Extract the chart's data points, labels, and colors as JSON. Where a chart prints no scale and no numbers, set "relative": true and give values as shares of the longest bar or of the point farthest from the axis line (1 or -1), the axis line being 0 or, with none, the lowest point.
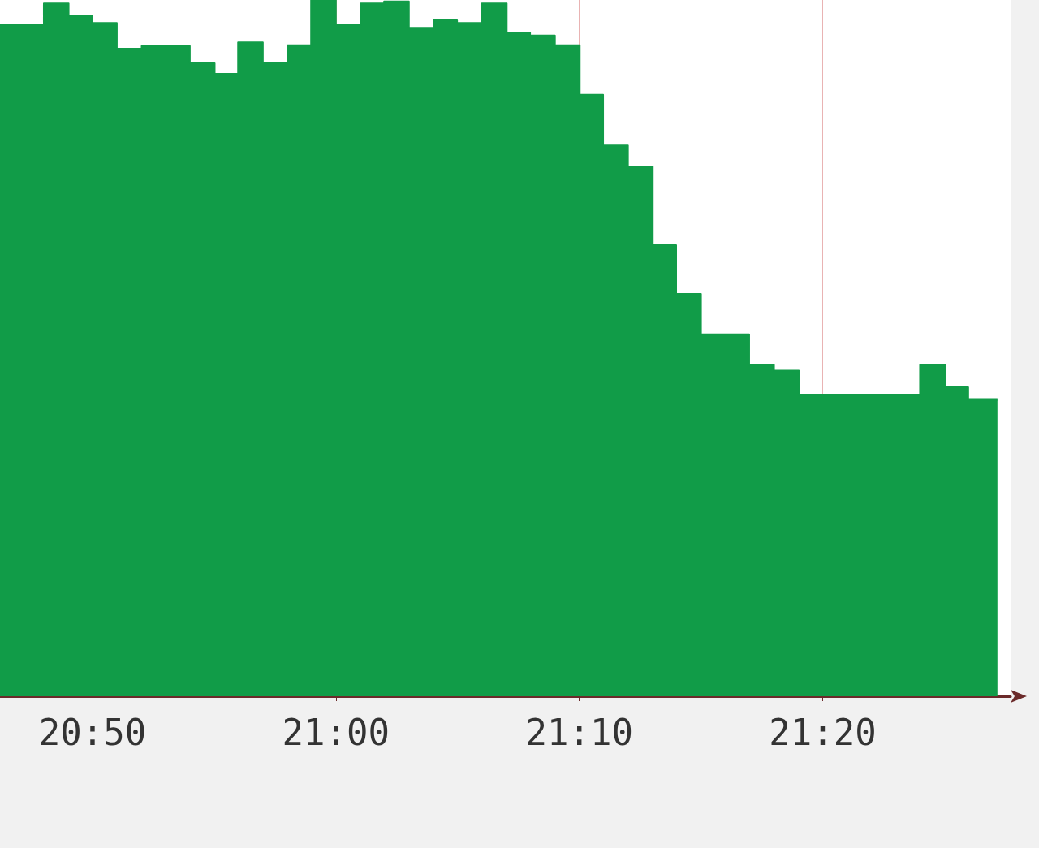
{
  "chart_data": {
    "type": "area",
    "relative": true,
    "color": "#119c48",
    "grid": "x",
    "x": [
      20.77,
      20.8,
      20.8,
      20.817,
      20.817,
      20.833,
      20.833,
      20.85,
      20.85,
      20.867,
      20.867,
      20.9,
      20.9,
      20.917,
      20.917,
      20.933,
      20.933,
      20.95,
      20.95,
      20.967,
      20.967,
      20.983,
      20.983,
      21,
      21,
      21.017,
      21.017,
      21.033,
      21.033,
      21.05,
      21.05,
      21.067,
      21.067,
      21.083,
      21.083,
      21.1,
      21.1,
      21.117,
      21.117,
      21.133,
      21.133,
      21.15,
      21.15,
      21.167,
      21.167,
      21.183,
      21.183,
      21.2,
      21.2,
      21.217,
      21.217,
      21.233,
      21.233,
      21.25,
      21.25,
      21.283,
      21.283,
      21.3,
      21.3,
      21.317,
      21.317,
      21.4,
      21.4,
      21.417,
      21.417,
      21.433,
      21.433,
      21.453
    ],
    "values": [
      0.964,
      0.964,
      0.995,
      0.995,
      0.977,
      0.977,
      0.967,
      0.967,
      0.93,
      0.93,
      0.934,
      0.934,
      0.909,
      0.909,
      0.894,
      0.894,
      0.939,
      0.939,
      0.909,
      0.909,
      0.935,
      0.935,
      1,
      1,
      0.964,
      0.964,
      0.995,
      0.995,
      0.998,
      0.998,
      0.96,
      0.96,
      0.971,
      0.971,
      0.967,
      0.967,
      0.995,
      0.995,
      0.953,
      0.953,
      0.949,
      0.949,
      0.935,
      0.935,
      0.864,
      0.864,
      0.791,
      0.791,
      0.761,
      0.761,
      0.648,
      0.648,
      0.578,
      0.578,
      0.52,
      0.52,
      0.476,
      0.476,
      0.468,
      0.468,
      0.433,
      0.433,
      0.476,
      0.476,
      0.444,
      0.444,
      0.426,
      0.426
    ],
    "xlim": [
      20.77,
      21.462
    ],
    "xticks": [
      {
        "value": 20.8333,
        "label": "20:50"
      },
      {
        "value": 21,
        "label": "21:00"
      },
      {
        "value": 21.1667,
        "label": "21:10"
      },
      {
        "value": 21.3333,
        "label": "21:20"
      }
    ]
  }
}
